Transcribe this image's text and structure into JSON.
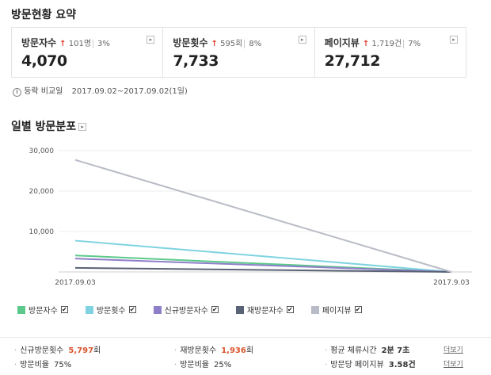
{
  "summary": {
    "title": "방문현황 요약",
    "cards": [
      {
        "label": "방문자수",
        "delta": "101명",
        "pct": "3%",
        "value": "4,070"
      },
      {
        "label": "방문횟수",
        "delta": "595회",
        "pct": "8%",
        "value": "7,733"
      },
      {
        "label": "페이지뷰",
        "delta": "1,719건",
        "pct": "7%",
        "value": "27,712"
      }
    ]
  },
  "compare": {
    "label": "등락 비교일",
    "dates": "2017.09.02~2017.09.02(1일)"
  },
  "chart_section": {
    "title": "일별 방문분포"
  },
  "chart_data": {
    "type": "line",
    "x": [
      "2017.09.03",
      "2017.9.03"
    ],
    "ylim": [
      0,
      30000
    ],
    "y_ticks": [
      "30,000",
      "20,000",
      "10,000"
    ],
    "series": [
      {
        "name": "방문자수",
        "color": "#5cc98a",
        "values": [
          4070,
          0
        ]
      },
      {
        "name": "방문횟수",
        "color": "#7fd3e0",
        "values": [
          7733,
          0
        ]
      },
      {
        "name": "신규방문자수",
        "color": "#8f7fc9",
        "values": [
          3300,
          0
        ]
      },
      {
        "name": "재방문자수",
        "color": "#5a6275",
        "values": [
          1000,
          0
        ]
      },
      {
        "name": "페이지뷰",
        "color": "#b9bcc7",
        "values": [
          27712,
          0
        ]
      }
    ]
  },
  "check_mark": "✔",
  "stats": [
    {
      "label": "신규방문횟수",
      "value": "5,797",
      "unit": "회",
      "red": true
    },
    {
      "label": "재방문횟수",
      "value": "1,936",
      "unit": "회",
      "red": true
    },
    {
      "label": "평균 체류시간",
      "value": "2분 7초",
      "unit": "",
      "red": false,
      "more": "더보기"
    },
    {
      "label": "방문비율",
      "value": "75%",
      "unit": "",
      "red": false
    },
    {
      "label": "방문비율",
      "value": "25%",
      "unit": "",
      "red": false
    },
    {
      "label": "방문당 페이지뷰",
      "value": "3.58건",
      "unit": "",
      "red": false,
      "more": "더보기"
    }
  ]
}
